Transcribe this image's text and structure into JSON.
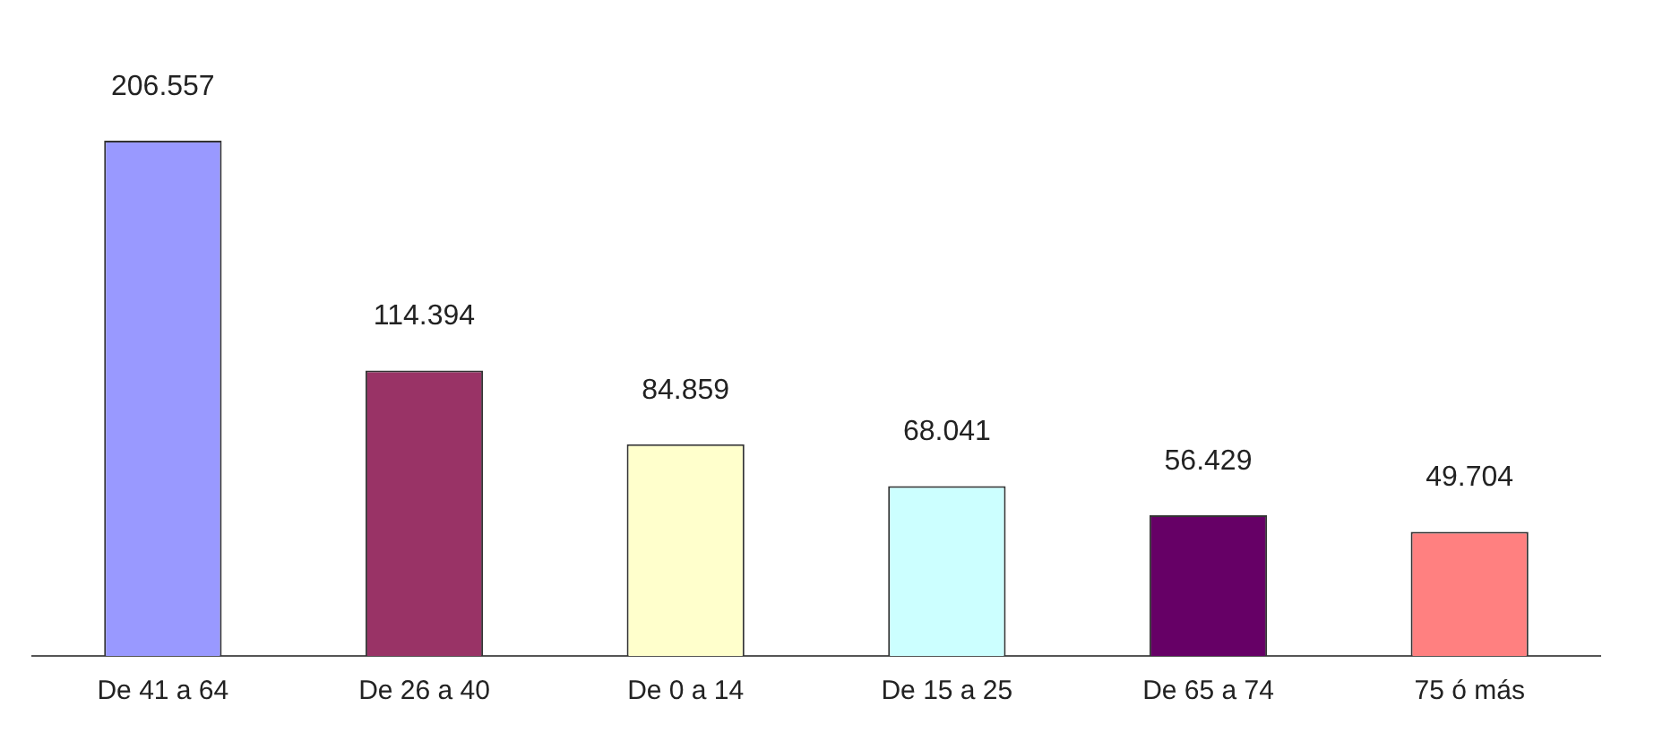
{
  "chart_data": {
    "type": "bar",
    "categories": [
      "De 41 a 64",
      "De 26 a 40",
      "De 0 a 14",
      "De 15 a 25",
      "De 65 a 74",
      "75 ó más"
    ],
    "values": [
      206557,
      114394,
      84859,
      68041,
      56429,
      49704
    ],
    "colors": [
      "#9999ff",
      "#993366",
      "#ffffcc",
      "#ccffff",
      "#660066",
      "#ff8080"
    ],
    "value_labels": [
      "206.557",
      "114.394",
      "84.859",
      "68.041",
      "56.429",
      "49.704"
    ],
    "tick_labels": "x",
    "grid": false,
    "legend": false
  }
}
